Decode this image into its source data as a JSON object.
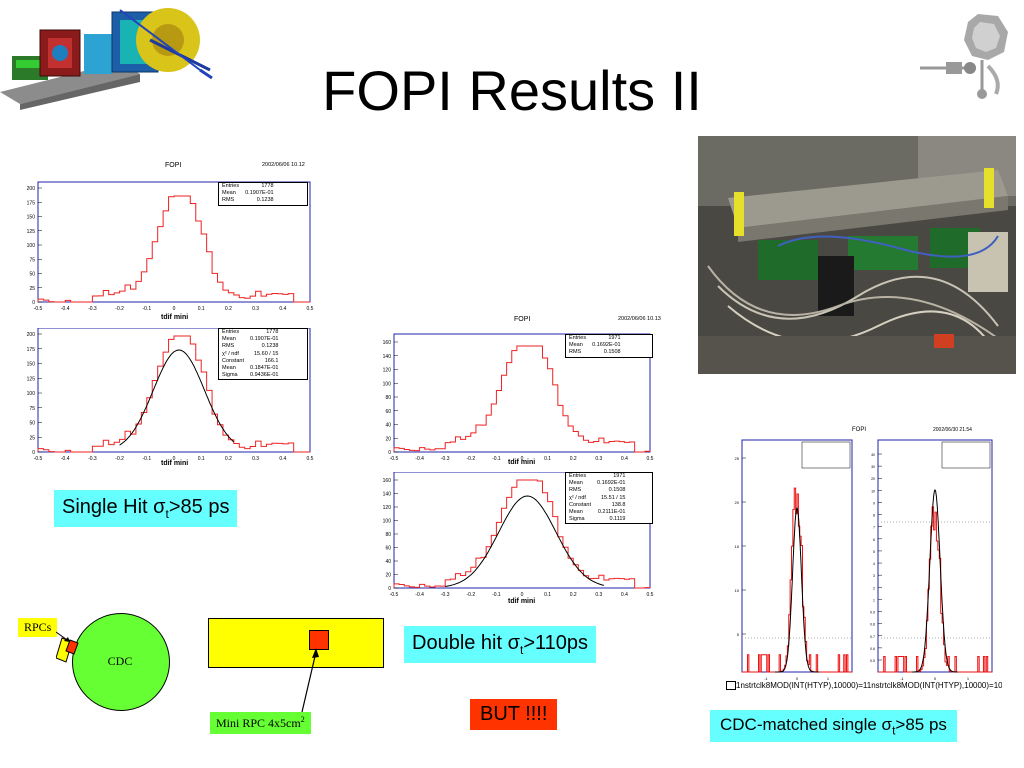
{
  "slide": {
    "title": "FOPI Results II"
  },
  "single_hit": {
    "header": {
      "name": "FOPI",
      "date": "2002/06/06   10.12"
    },
    "top": {
      "stats": [
        [
          "Entries",
          "1778"
        ],
        [
          "Mean",
          "0.1907E-01"
        ],
        [
          "RMS",
          "0.1238"
        ]
      ],
      "xlabel": "tdif mini",
      "yticks": [
        "200",
        "175",
        "150",
        "125",
        "100",
        "75",
        "50",
        "25",
        "0"
      ],
      "xticks": [
        "-0.5",
        "-0.4",
        "-0.3",
        "-0.2",
        "-0.1",
        "0",
        "0.1",
        "0.2",
        "0.3",
        "0.4",
        "0.5"
      ]
    },
    "bottom": {
      "stats": [
        [
          "Entries",
          "1778"
        ],
        [
          "Mean",
          "0.1907E-01"
        ],
        [
          "RMS",
          "0.1238"
        ],
        [
          "χ² / ndf",
          "15.60   /   15"
        ],
        [
          "Constant",
          "166.1"
        ],
        [
          "Mean",
          "0.1847E-01"
        ],
        [
          "Sigma",
          "0.9436E-01"
        ]
      ],
      "xlabel": "tdif mini",
      "yticks": [
        "200",
        "175",
        "150",
        "125",
        "100",
        "75",
        "50",
        "25",
        "0"
      ],
      "xticks": [
        "-0.5",
        "-0.4",
        "-0.3",
        "-0.2",
        "-0.1",
        "0",
        "0.1",
        "0.2",
        "0.3",
        "0.4",
        "0.5"
      ]
    },
    "label_main": "Single Hit σ",
    "label_sub": "t",
    "label_tail": ">85 ps"
  },
  "double_hit": {
    "header": {
      "name": "FOPI",
      "date": "2002/06/06   10.13"
    },
    "top": {
      "stats": [
        [
          "Entries",
          "1971"
        ],
        [
          "Mean",
          "0.1692E-01"
        ],
        [
          "RMS",
          "0.1508"
        ]
      ],
      "xlabel": "tdif mini",
      "yticks": [
        "160",
        "140",
        "120",
        "100",
        "80",
        "60",
        "40",
        "20",
        "0"
      ],
      "xticks": [
        "-0.5",
        "-0.4",
        "-0.3",
        "-0.2",
        "-0.1",
        "0",
        "0.1",
        "0.2",
        "0.3",
        "0.4",
        "0.5"
      ]
    },
    "bottom": {
      "stats": [
        [
          "Entries",
          "1971"
        ],
        [
          "Mean",
          "0.1692E-01"
        ],
        [
          "RMS",
          "0.1508"
        ],
        [
          "χ² / ndf",
          "15.51   /   15"
        ],
        [
          "Constant",
          "138.8"
        ],
        [
          "Mean",
          "0.2111E-01"
        ],
        [
          "Sigma",
          "0.1119"
        ]
      ],
      "xlabel": "tdif mini",
      "yticks": [
        "160",
        "140",
        "120",
        "100",
        "80",
        "60",
        "40",
        "20",
        "0"
      ],
      "xticks": [
        "-0.5",
        "-0.4",
        "-0.3",
        "-0.2",
        "-0.1",
        "0",
        "0.1",
        "0.2",
        "0.3",
        "0.4",
        "0.5"
      ]
    },
    "label_main": "Double hit σ",
    "label_sub": "t",
    "label_tail": ">110ps"
  },
  "cdc_matched": {
    "header": {
      "name": "FOPI",
      "date": "2002/06/30   21.54"
    },
    "left_yticks": [
      "25",
      "20",
      "15",
      "10",
      "5"
    ],
    "right_yticks": [
      "40",
      "30",
      "20",
      "10",
      "9",
      "8",
      "7",
      "6",
      "5",
      "4",
      "3",
      "2",
      "1",
      "0.9",
      "0.8",
      "0.7",
      "0.6",
      "0.5"
    ],
    "xticks": [
      "-1",
      "0",
      "1"
    ],
    "footer_left": "1nstrtclk8MOD(INT(HTYP),10000)=1",
    "footer_right": "1nstrtclk8MOD(INT(HTYP),10000)=10",
    "label_main": "CDC-matched single σ",
    "label_sub": "t",
    "label_tail": ">85 ps"
  },
  "sketch": {
    "rpcs": "RPCs",
    "cdc": "CDC",
    "mini_rpc": "Mini RPC 4x5cm",
    "mini_rpc_sup": "2"
  },
  "but_label": "BUT !!!!",
  "colors": {
    "cyan_box": "#66ffff",
    "red_box": "#ff3300",
    "yellow": "#ffff00",
    "green": "#66ff33"
  },
  "icons": [
    "detector-model-image",
    "fopi-logo-icon",
    "electronics-photo"
  ]
}
